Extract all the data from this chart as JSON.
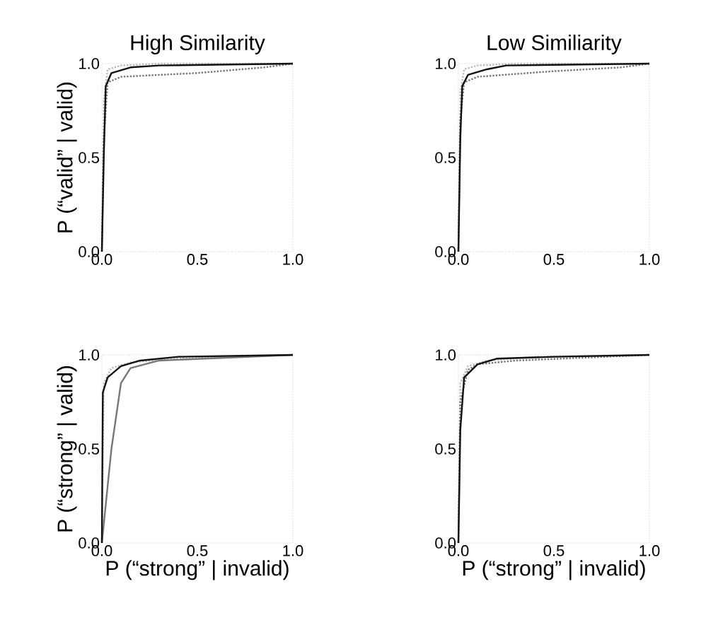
{
  "chart_data": [
    {
      "type": "line",
      "title": "High Similarity",
      "ylabel": "P (“valid” | valid)",
      "xlim": [
        0,
        1
      ],
      "ylim": [
        0,
        1
      ],
      "xticks": [
        {
          "value": 0,
          "label": "0.0"
        },
        {
          "value": 0.5,
          "label": "0.5"
        },
        {
          "value": 1,
          "label": "1.0"
        }
      ],
      "yticks": [
        {
          "value": 0,
          "label": "0.0"
        },
        {
          "value": 0.5,
          "label": "0.5"
        },
        {
          "value": 1,
          "label": "1.0"
        }
      ],
      "series": [
        {
          "color": "#bbbbbb",
          "line_style": "dotted",
          "x": [
            0,
            0.01,
            0.03,
            0.1,
            0.3,
            1
          ],
          "values": [
            0,
            0.8,
            0.97,
            0.99,
            1,
            1
          ]
        },
        {
          "color": "#777777",
          "line_style": "dotted",
          "x": [
            0,
            0.01,
            0.03,
            0.1,
            0.5,
            0.85,
            1
          ],
          "values": [
            0,
            0.6,
            0.9,
            0.93,
            0.95,
            0.98,
            1
          ]
        },
        {
          "color": "#111111",
          "line_style": "solid",
          "x": [
            0,
            0.01,
            0.02,
            0.05,
            0.15,
            0.3,
            1
          ],
          "values": [
            0,
            0.5,
            0.88,
            0.95,
            0.98,
            0.99,
            1
          ]
        }
      ]
    },
    {
      "type": "line",
      "title": "Low Similiarity",
      "xlim": [
        0,
        1
      ],
      "ylim": [
        0,
        1
      ],
      "xticks": [
        {
          "value": 0,
          "label": "0.0"
        },
        {
          "value": 0.5,
          "label": "0.5"
        },
        {
          "value": 1,
          "label": "1.0"
        }
      ],
      "yticks": [
        {
          "value": 0,
          "label": "0.0"
        },
        {
          "value": 0.5,
          "label": "0.5"
        },
        {
          "value": 1,
          "label": "1.0"
        }
      ],
      "series": [
        {
          "color": "#bbbbbb",
          "line_style": "dotted",
          "x": [
            0,
            0.01,
            0.03,
            0.1,
            0.3,
            1
          ],
          "values": [
            0,
            0.85,
            0.97,
            0.99,
            1,
            1
          ]
        },
        {
          "color": "#777777",
          "line_style": "dotted",
          "x": [
            0,
            0.01,
            0.03,
            0.1,
            0.5,
            0.85,
            1
          ],
          "values": [
            0,
            0.7,
            0.9,
            0.93,
            0.96,
            0.98,
            1
          ]
        },
        {
          "color": "#111111",
          "line_style": "solid",
          "x": [
            0,
            0.01,
            0.02,
            0.05,
            0.15,
            0.25,
            1
          ],
          "values": [
            0,
            0.6,
            0.88,
            0.94,
            0.97,
            0.99,
            1
          ]
        }
      ]
    },
    {
      "type": "line",
      "ylabel": "P (“strong” | valid)",
      "xlabel": "P (“strong” | invalid)",
      "xlim": [
        0,
        1
      ],
      "ylim": [
        0,
        1
      ],
      "xticks": [
        {
          "value": 0,
          "label": "0.0"
        },
        {
          "value": 0.5,
          "label": "0.5"
        },
        {
          "value": 1,
          "label": "1.0"
        }
      ],
      "yticks": [
        {
          "value": 0,
          "label": "0.0"
        },
        {
          "value": 0.5,
          "label": "0.5"
        },
        {
          "value": 1,
          "label": "1.0"
        }
      ],
      "series": [
        {
          "color": "#bbbbbb",
          "line_style": "dotted",
          "x": [
            0,
            0.01,
            0.05,
            0.15,
            0.4,
            1
          ],
          "values": [
            0,
            0.85,
            0.93,
            0.96,
            0.98,
            1
          ]
        },
        {
          "color": "#777777",
          "line_style": "solid",
          "x": [
            0,
            0.05,
            0.1,
            0.15,
            0.3,
            1
          ],
          "values": [
            0,
            0.5,
            0.85,
            0.93,
            0.97,
            1
          ]
        },
        {
          "color": "#111111",
          "line_style": "solid",
          "x": [
            0,
            0.005,
            0.03,
            0.1,
            0.2,
            0.4,
            1
          ],
          "values": [
            0,
            0.8,
            0.88,
            0.94,
            0.97,
            0.99,
            1
          ]
        }
      ]
    },
    {
      "type": "line",
      "xlabel": "P (“strong” | invalid)",
      "xlim": [
        0,
        1
      ],
      "ylim": [
        0,
        1
      ],
      "xticks": [
        {
          "value": 0,
          "label": "0.0"
        },
        {
          "value": 0.5,
          "label": "0.5"
        },
        {
          "value": 1,
          "label": "1.0"
        }
      ],
      "yticks": [
        {
          "value": 0,
          "label": "0.0"
        },
        {
          "value": 0.5,
          "label": "0.5"
        },
        {
          "value": 1,
          "label": "1.0"
        }
      ],
      "series": [
        {
          "color": "#bbbbbb",
          "line_style": "dotted",
          "x": [
            0,
            0.01,
            0.05,
            0.15,
            0.4,
            1
          ],
          "values": [
            0,
            0.85,
            0.94,
            0.97,
            0.99,
            1
          ]
        },
        {
          "color": "#777777",
          "line_style": "dotted",
          "x": [
            0,
            0.01,
            0.05,
            0.1,
            0.3,
            1
          ],
          "values": [
            0,
            0.75,
            0.92,
            0.95,
            0.97,
            1
          ]
        },
        {
          "color": "#111111",
          "line_style": "solid",
          "x": [
            0,
            0.01,
            0.03,
            0.1,
            0.2,
            0.5,
            1
          ],
          "values": [
            0,
            0.6,
            0.88,
            0.95,
            0.98,
            0.99,
            1
          ]
        }
      ]
    }
  ]
}
